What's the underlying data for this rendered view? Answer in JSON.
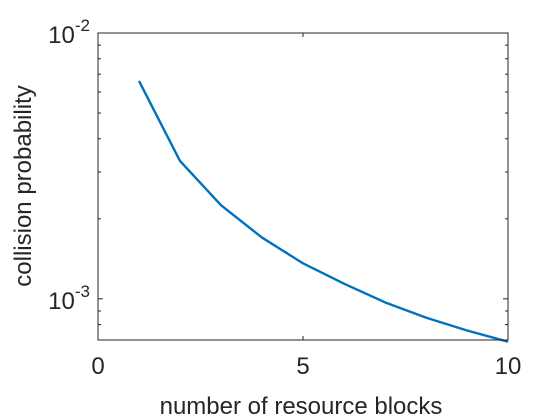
{
  "chart_data": {
    "type": "line",
    "title": "",
    "xlabel": "number of resource blocks",
    "ylabel": "collision probability",
    "xlim": [
      0,
      10
    ],
    "ylim": [
      0.0007,
      0.01
    ],
    "yscale": "log",
    "grid": false,
    "xticks": [
      0,
      5,
      10
    ],
    "xtick_labels": [
      "0",
      "5",
      "10"
    ],
    "yticks": [
      {
        "value": 0.01,
        "base": "10",
        "exp": "-2"
      },
      {
        "value": 0.001,
        "base": "10",
        "exp": "-3"
      }
    ],
    "series": [
      {
        "color": "#0072BD",
        "x": [
          1,
          2,
          3,
          4,
          5,
          6,
          7,
          8,
          9,
          10
        ],
        "y": [
          0.0066,
          0.0033,
          0.00225,
          0.0017,
          0.00136,
          0.00114,
          0.00097,
          0.00085,
          0.00076,
          0.00069
        ]
      }
    ]
  }
}
